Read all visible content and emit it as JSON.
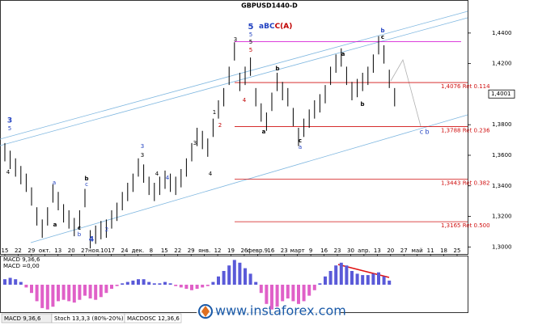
{
  "chart_data": {
    "type": "ohlc",
    "title": "GBPUSD1440-D",
    "categories": [
      "15",
      "22",
      "29",
      "окт.",
      "13",
      "20",
      "27",
      "ноя.10",
      "17",
      "24",
      "дек.",
      "8",
      "15",
      "22",
      "29",
      "янв.",
      "12",
      "19",
      "26",
      "февр.9",
      "16",
      "23",
      "март",
      "9",
      "16",
      "23",
      "30",
      "апр.",
      "13",
      "20",
      "27",
      "май",
      "11",
      "18",
      "25"
    ],
    "high": [
      1.368,
      1.363,
      1.358,
      1.353,
      1.348,
      1.339,
      1.326,
      1.318,
      1.326,
      1.341,
      1.336,
      1.328,
      1.324,
      1.319,
      1.324,
      1.338,
      1.311,
      1.314,
      1.317,
      1.318,
      1.324,
      1.329,
      1.336,
      1.342,
      1.348,
      1.358,
      1.354,
      1.346,
      1.342,
      1.346,
      1.35,
      1.348,
      1.346,
      1.351,
      1.358,
      1.368,
      1.378,
      1.376,
      1.371,
      1.384,
      1.396,
      1.404,
      1.418,
      1.434,
      1.414,
      1.418,
      1.424,
      1.404,
      1.394,
      1.388,
      1.401,
      1.414,
      1.408,
      1.404,
      1.391,
      1.378,
      1.384,
      1.39,
      1.396,
      1.4,
      1.406,
      1.418,
      1.426,
      1.43,
      1.418,
      1.408,
      1.41,
      1.414,
      1.418,
      1.426,
      1.438,
      1.432,
      1.416,
      1.404
    ],
    "low": [
      1.356,
      1.351,
      1.346,
      1.341,
      1.336,
      1.327,
      1.314,
      1.306,
      1.314,
      1.329,
      1.324,
      1.316,
      1.312,
      1.307,
      1.312,
      1.326,
      1.299,
      1.302,
      1.305,
      1.306,
      1.312,
      1.317,
      1.324,
      1.33,
      1.336,
      1.346,
      1.342,
      1.334,
      1.33,
      1.334,
      1.338,
      1.336,
      1.334,
      1.339,
      1.346,
      1.356,
      1.366,
      1.364,
      1.359,
      1.372,
      1.384,
      1.392,
      1.406,
      1.422,
      1.402,
      1.406,
      1.412,
      1.392,
      1.382,
      1.376,
      1.389,
      1.402,
      1.396,
      1.392,
      1.379,
      1.366,
      1.372,
      1.378,
      1.384,
      1.388,
      1.394,
      1.406,
      1.414,
      1.418,
      1.406,
      1.396,
      1.398,
      1.402,
      1.406,
      1.414,
      1.426,
      1.42,
      1.404,
      1.392
    ],
    "color": "#000000",
    "ylim": [
      1.2954,
      1.4611
    ],
    "yticks": [
      {
        "value": 1.44,
        "label": "1,4400"
      },
      {
        "value": 1.42,
        "label": "1,4200"
      },
      {
        "value": 1.38,
        "label": "1,3800"
      },
      {
        "value": 1.36,
        "label": "1,3600"
      },
      {
        "value": 1.34,
        "label": "1,3400"
      },
      {
        "value": 1.32,
        "label": "1,3200"
      },
      {
        "value": 1.3,
        "label": "1,3000"
      }
    ],
    "current_price": {
      "value": 1.4001,
      "label": "1,4001"
    },
    "upper_level": 1.4343,
    "upper_level_color": "#d000d0",
    "levels_color": "#d01010",
    "levels": [
      {
        "value": 1.4076,
        "label": "1,4076 Ret 0.114"
      },
      {
        "value": 1.3788,
        "label": "1,3788 Ret 0.236"
      },
      {
        "value": 1.3443,
        "label": "1,3443 Ret 0.382"
      },
      {
        "value": 1.3165,
        "label": "1,3165 Ret 0.500"
      }
    ],
    "wave_header": [
      {
        "text": "a",
        "color": "#2040c0"
      },
      {
        "text": "B",
        "color": "#2040c0"
      },
      {
        "text": "C",
        "color": "#2040c0"
      },
      {
        "text": "C(A)",
        "color": "#c00000"
      }
    ],
    "annotations": [
      {
        "text": "3",
        "color": "#2040c0"
      },
      {
        "text": "5",
        "color": "#2040c0"
      },
      {
        "text": "4",
        "color": "#000000"
      },
      {
        "text": "a",
        "color": "#2040c0"
      },
      {
        "text": "a",
        "color": "#000000"
      },
      {
        "text": "b",
        "color": "#000000"
      },
      {
        "text": "c",
        "color": "#2040c0"
      },
      {
        "text": "c",
        "color": "#000000"
      },
      {
        "text": "b",
        "color": "#2040c0"
      },
      {
        "text": "4",
        "color": "#2040c0"
      },
      {
        "text": "2",
        "color": "#2040c0"
      },
      {
        "text": "3",
        "color": "#2040c0"
      },
      {
        "text": "3",
        "color": "#000000"
      },
      {
        "text": "4",
        "color": "#2040c0"
      },
      {
        "text": "4",
        "color": "#000000"
      },
      {
        "text": "3",
        "color": "#000000"
      },
      {
        "text": "4",
        "color": "#000000"
      },
      {
        "text": "1",
        "color": "#000000"
      },
      {
        "text": "2",
        "color": "#c00000"
      },
      {
        "text": "3",
        "color": "#000000"
      },
      {
        "text": "4",
        "color": "#c00000"
      },
      {
        "text": "5",
        "color": "#2040c0"
      },
      {
        "text": "5",
        "color": "#2040c0"
      },
      {
        "text": "5",
        "color": "#000000"
      },
      {
        "text": "5",
        "color": "#c00000"
      },
      {
        "text": "a",
        "color": "#000000"
      },
      {
        "text": "b",
        "color": "#000000"
      },
      {
        "text": "c",
        "color": "#000000"
      },
      {
        "text": "a",
        "color": "#2040c0"
      },
      {
        "text": "a",
        "color": "#000000"
      },
      {
        "text": "b",
        "color": "#000000"
      },
      {
        "text": "b",
        "color": "#2040c0"
      },
      {
        "text": "c",
        "color": "#000000"
      },
      {
        "text": "c",
        "color": "#2040c0"
      },
      {
        "text": "b",
        "color": "#2040c0"
      }
    ],
    "macd": {
      "title": "MACD 9,36,6",
      "value_text": "MACD =0,00",
      "ylim": [
        -1,
        1
      ],
      "positive_color": "#5a5ad8",
      "negative_color": "#e060c8",
      "values": [
        0.2,
        0.25,
        0.2,
        0.1,
        -0.1,
        -0.3,
        -0.6,
        -0.85,
        -0.9,
        -0.8,
        -0.6,
        -0.55,
        -0.6,
        -0.65,
        -0.55,
        -0.4,
        -0.5,
        -0.55,
        -0.45,
        -0.3,
        -0.15,
        -0.05,
        0.05,
        0.1,
        0.15,
        0.2,
        0.2,
        0.1,
        0.05,
        0.05,
        0.1,
        0.05,
        -0.05,
        -0.1,
        -0.15,
        -0.2,
        -0.15,
        -0.1,
        -0.05,
        0.1,
        0.3,
        0.5,
        0.7,
        0.9,
        0.8,
        0.6,
        0.4,
        0.1,
        -0.3,
        -0.7,
        -0.9,
        -0.8,
        -0.6,
        -0.5,
        -0.6,
        -0.7,
        -0.6,
        -0.4,
        -0.2,
        0.05,
        0.3,
        0.5,
        0.7,
        0.8,
        0.7,
        0.5,
        0.4,
        0.35,
        0.35,
        0.4,
        0.45,
        0.3,
        0.15,
        0.0
      ]
    },
    "tabs": [
      "MACD 9,36,6",
      "Stoch 13,3,3 (80%-20%)",
      "MACDOSC 12,36,6"
    ],
    "watermark": "www.instaforex.com"
  }
}
